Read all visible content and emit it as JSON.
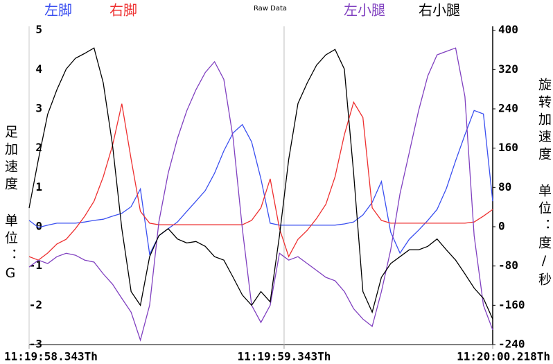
{
  "chart_data": {
    "type": "line",
    "title": "Raw Data",
    "ylabel": "足加速度 单位：G",
    "y2label": "旋转加速度 单位：度/秒",
    "xlim": [
      0,
      50
    ],
    "xticks": [
      {
        "value": 0,
        "label": "11:19:58.343Th"
      },
      {
        "value": 27.5,
        "label": "11:19:59.343Th"
      },
      {
        "value": 50,
        "label": "11:20:00.218Th"
      }
    ],
    "ylim": [
      -3,
      5.1
    ],
    "yticks": [
      -3,
      -2,
      -1,
      0,
      1,
      2,
      3,
      4,
      5
    ],
    "y2lim": [
      -240,
      408
    ],
    "y2ticks": [
      -240,
      -160,
      -80,
      0,
      80,
      160,
      240,
      320,
      400
    ],
    "series": [
      {
        "name": "左脚",
        "color": "#3a4ff0",
        "axis": "y",
        "values": [
          0.16,
          -0.02,
          0.04,
          0.09,
          0.09,
          0.09,
          0.12,
          0.16,
          0.19,
          0.27,
          0.34,
          0.51,
          0.96,
          -0.7,
          -0.23,
          -0.05,
          0.12,
          0.39,
          0.65,
          0.92,
          1.36,
          1.93,
          2.39,
          2.6,
          2.16,
          1.22,
          0.09,
          0.04,
          0.04,
          0.04,
          0.04,
          0.04,
          0.04,
          0.04,
          0.07,
          0.12,
          0.3,
          0.62,
          1.15,
          -0.14,
          -0.67,
          -0.32,
          -0.09,
          0.16,
          0.44,
          0.97,
          1.68,
          2.34,
          2.96,
          2.87,
          0.65
        ]
      },
      {
        "name": "右脚",
        "color": "#ee3030",
        "axis": "y",
        "values": [
          -0.76,
          -0.85,
          -0.67,
          -0.44,
          -0.32,
          -0.05,
          0.27,
          0.65,
          1.27,
          2.07,
          3.13,
          1.72,
          0.39,
          0.09,
          0.05,
          0.05,
          0.05,
          0.05,
          0.05,
          0.05,
          0.05,
          0.05,
          0.05,
          0.05,
          0.16,
          0.48,
          1.22,
          -0.05,
          -0.76,
          -0.32,
          -0.09,
          0.21,
          0.57,
          1.27,
          2.34,
          3.17,
          2.78,
          0.48,
          0.16,
          0.09,
          0.09,
          0.09,
          0.09,
          0.09,
          0.09,
          0.09,
          0.09,
          0.09,
          0.12,
          0.27,
          0.44
        ]
      },
      {
        "name": "左小腿",
        "color": "#8040c0",
        "axis": "y2",
        "values": [
          -82,
          -68,
          -75,
          -61,
          -54,
          -58,
          -68,
          -72,
          -96,
          -117,
          -146,
          -174,
          -231,
          -160,
          10,
          109,
          180,
          236,
          279,
          314,
          336,
          300,
          180,
          -4,
          -160,
          -195,
          -160,
          -54,
          -68,
          -61,
          -75,
          -89,
          -103,
          -110,
          -132,
          -167,
          -188,
          -203,
          -132,
          -47,
          67,
          151,
          236,
          307,
          350,
          357,
          364,
          265,
          -18,
          -160,
          -210
        ]
      },
      {
        "name": "右小腿",
        "color": "#000000",
        "axis": "y2",
        "values": [
          38,
          137,
          229,
          279,
          321,
          343,
          353,
          364,
          293,
          166,
          -4,
          -132,
          -160,
          -61,
          -18,
          -4,
          -25,
          -33,
          -30,
          -40,
          -61,
          -68,
          -103,
          -139,
          -160,
          -132,
          -153,
          -18,
          137,
          251,
          293,
          329,
          350,
          361,
          321,
          109,
          -132,
          -174,
          -103,
          -75,
          -61,
          -47,
          -47,
          -40,
          -25,
          -47,
          -68,
          -96,
          -125,
          -146,
          -188
        ]
      }
    ]
  }
}
